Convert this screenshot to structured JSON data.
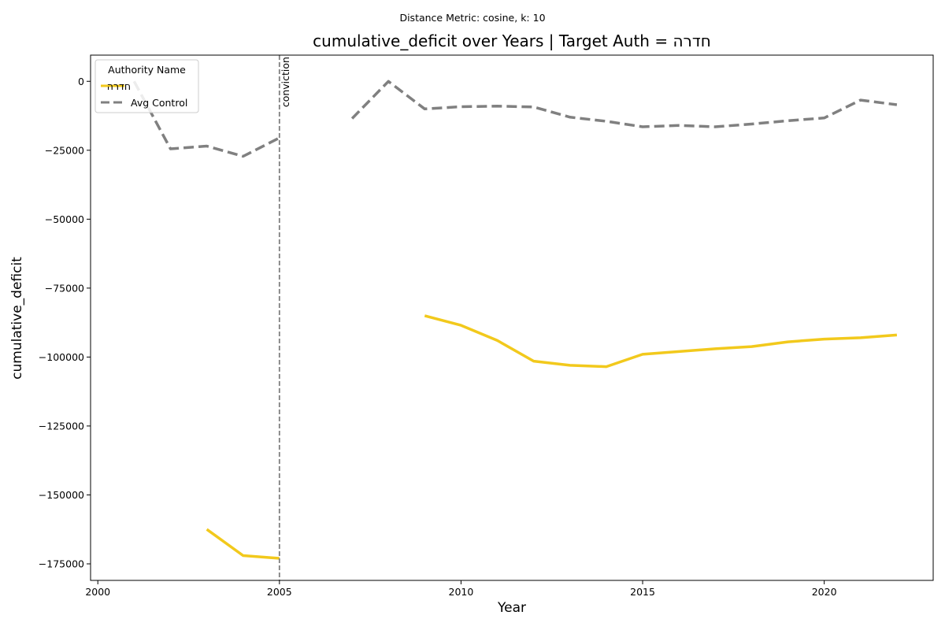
{
  "chart_data": {
    "type": "line",
    "suptitle": "Distance Metric: cosine, k: 10",
    "title": "cumulative_deficit over Years | Target Auth = חדרה",
    "xlabel": "Year",
    "ylabel": "cumulative_deficit",
    "xlim": [
      1999.8,
      2023.0
    ],
    "ylim": [
      -181000,
      9500
    ],
    "xticks": [
      2000,
      2005,
      2010,
      2015,
      2020
    ],
    "yticks": [
      0,
      -25000,
      -50000,
      -75000,
      -100000,
      -125000,
      -150000,
      -175000
    ],
    "ytick_labels": [
      "0",
      "−25000",
      "−50000",
      "−75000",
      "−100000",
      "−125000",
      "−150000",
      "−175000"
    ],
    "grid": false,
    "legend": {
      "title": "Authority Name",
      "placement": "upper-left"
    },
    "annotation": {
      "text": "conviction",
      "x": 2005
    },
    "series": [
      {
        "name": "חדרה",
        "color": "#f2c91c",
        "style": "solid",
        "segments": [
          {
            "x": [
              2003,
              2004,
              2005
            ],
            "y": [
              -162500,
              -172000,
              -173000
            ]
          },
          {
            "x": [
              2009,
              2010,
              2011,
              2012,
              2013,
              2014,
              2015,
              2016,
              2017,
              2018,
              2019,
              2020,
              2021,
              2022
            ],
            "y": [
              -85000,
              -88500,
              -94000,
              -101500,
              -103000,
              -103500,
              -99000,
              -98000,
              -97000,
              -96200,
              -94500,
              -93500,
              -93000,
              -92000
            ]
          }
        ]
      },
      {
        "name": "Avg Control",
        "color": "#808080",
        "style": "dashed",
        "segments": [
          {
            "x": [
              2001,
              2002,
              2003,
              2004,
              2005
            ],
            "y": [
              0,
              -24500,
              -23500,
              -27200,
              -20500
            ]
          },
          {
            "x": [
              2007,
              2008,
              2009,
              2010,
              2011,
              2012,
              2013,
              2014,
              2015,
              2016,
              2017,
              2018,
              2019,
              2020,
              2021,
              2022
            ],
            "y": [
              -13500,
              0,
              -10000,
              -9200,
              -9000,
              -9300,
              -13000,
              -14500,
              -16500,
              -16000,
              -16500,
              -15500,
              -14300,
              -13300,
              -6800,
              -8500
            ]
          }
        ]
      }
    ]
  }
}
